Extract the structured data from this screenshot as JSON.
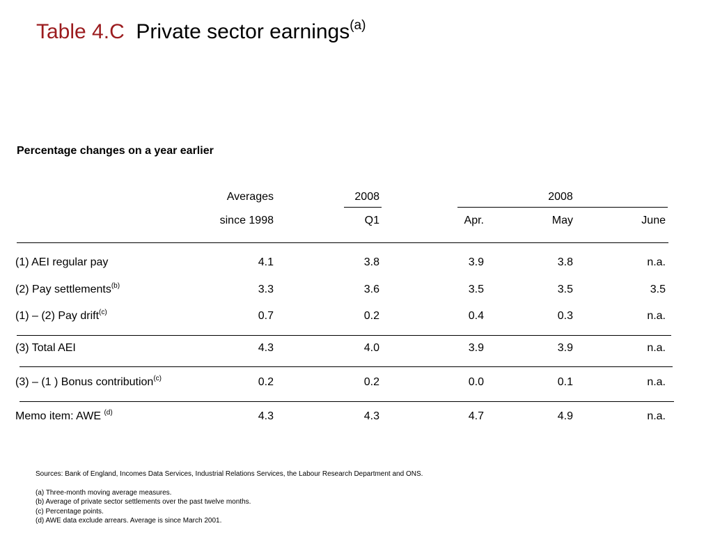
{
  "title": {
    "number": "Table 4.C",
    "text": "Private sector earnings",
    "note": "(a)"
  },
  "subtitle": "Percentage changes on a year earlier",
  "headers": {
    "averages_line1": "Averages",
    "averages_line2": "since 1998",
    "q_year": "2008",
    "q_period": "Q1",
    "m_year": "2008",
    "m_apr": "Apr.",
    "m_may": "May",
    "m_june": "June"
  },
  "rows": [
    {
      "label": "(1) AEI regular pay",
      "note": "",
      "values": [
        "4.1",
        "3.8",
        "3.9",
        "3.8",
        "n.a."
      ]
    },
    {
      "label": "(2) Pay settlements",
      "note": "(b)",
      "values": [
        "3.3",
        "3.6",
        "3.5",
        "3.5",
        "3.5"
      ]
    },
    {
      "label": "(1)  – (2) Pay drift",
      "note": "(c)",
      "values": [
        "0.7",
        "0.2",
        "0.4",
        "0.3",
        "n.a."
      ]
    },
    {
      "label": "(3) Total AEI",
      "note": "",
      "values": [
        "4.3",
        "4.0",
        "3.9",
        "3.9",
        "n.a."
      ]
    },
    {
      "label": "(3)  – (1 ) Bonus contribution",
      "note": "(c)",
      "values": [
        "0.2",
        "0.2",
        "0.0",
        "0.1",
        "n.a."
      ]
    },
    {
      "label": "Memo item:  AWE ",
      "note": "(d)",
      "values": [
        "4.3",
        "4.3",
        "4.7",
        "4.9",
        "n.a."
      ]
    }
  ],
  "footnotes": {
    "sources": "Sources:  Bank of England, Incomes Data Services, Industrial Relations Services, the Labour Research Department and ONS.",
    "a": "(a)  Three-month moving average measures.",
    "b": "(b)  Average of private sector settlements over the past twelve months.",
    "c": "(c)  Percentage points.",
    "d": "(d)  AWE data exclude arrears.  Average is since March 2001."
  }
}
